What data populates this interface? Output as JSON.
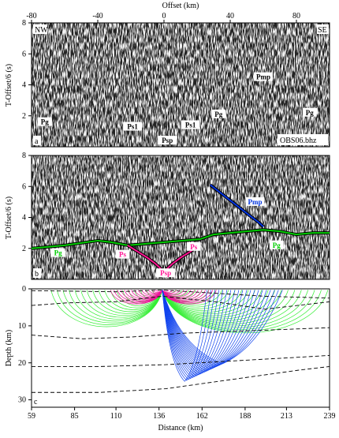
{
  "chart_data": [
    {
      "type": "seismic-section",
      "panel": "a",
      "title": "Offset (km)",
      "xlabel": "Offset (km)",
      "ylabel": "T-Offset/6 (s)",
      "xlim": [
        -80,
        100
      ],
      "ylim": [
        0,
        8
      ],
      "x_ticks": [
        "-80",
        "-40",
        "0",
        "40",
        "80"
      ],
      "y_ticks": [
        "2",
        "4",
        "6",
        "8"
      ],
      "corner_labels": {
        "left": "NW",
        "right": "SE"
      },
      "station": "OBS06.bhz",
      "phase_labels": [
        {
          "text": "Pg",
          "x": -72,
          "y": 1.5
        },
        {
          "text": "Ps1",
          "x": -19,
          "y": 1.2
        },
        {
          "text": "Psp",
          "x": 2,
          "y": 0.3
        },
        {
          "text": "Ps1",
          "x": 16,
          "y": 1.3
        },
        {
          "text": "Pg",
          "x": 33,
          "y": 2.0
        },
        {
          "text": "Pmp",
          "x": 60,
          "y": 4.4
        },
        {
          "text": "Pg",
          "x": 88,
          "y": 2.1
        }
      ]
    },
    {
      "type": "line",
      "panel": "b",
      "ylabel": "T-Offset/6 (s)",
      "xlim": [
        -80,
        100
      ],
      "ylim": [
        0,
        8
      ],
      "y_ticks": [
        "2",
        "4",
        "6",
        "8"
      ],
      "series": [
        {
          "name": "Pg",
          "color": "#00cc00",
          "x": [
            -80,
            -60,
            -40,
            -32,
            -22,
            22,
            30,
            40,
            50,
            60,
            70,
            80,
            90,
            100
          ],
          "y": [
            2.0,
            2.2,
            2.5,
            2.4,
            2.2,
            2.6,
            2.9,
            3.0,
            3.1,
            3.2,
            3.1,
            2.9,
            3.0,
            3.0
          ]
        },
        {
          "name": "Ps",
          "color": "#ff1493",
          "x": [
            -22,
            -16,
            -10,
            -5,
            -2,
            0,
            2,
            5,
            10,
            16,
            22
          ],
          "y": [
            2.2,
            1.8,
            1.4,
            1.0,
            0.7,
            0.4,
            0.7,
            1.0,
            1.4,
            1.8,
            2.3
          ]
        },
        {
          "name": "Pmp",
          "color": "#0033dd",
          "x": [
            28,
            34,
            40,
            46,
            52,
            57,
            60
          ],
          "y": [
            6.1,
            5.6,
            5.1,
            4.6,
            4.1,
            3.7,
            3.4
          ]
        }
      ],
      "phase_labels": [
        {
          "text": "Pg",
          "color": "#00cc00",
          "x": -64,
          "y": 1.6
        },
        {
          "text": "Ps",
          "color": "#ff1493",
          "x": -25,
          "y": 1.5
        },
        {
          "text": "Psp",
          "color": "#ff1493",
          "x": 1,
          "y": 0.3
        },
        {
          "text": "Ps",
          "color": "#ff1493",
          "x": 18,
          "y": 2.0
        },
        {
          "text": "Pmp",
          "color": "#0033dd",
          "x": 55,
          "y": 4.9
        },
        {
          "text": "Pg",
          "color": "#00cc00",
          "x": 68,
          "y": 2.1
        }
      ]
    },
    {
      "type": "ray-diagram",
      "panel": "c",
      "xlabel": "Distance (km)",
      "ylabel": "Depth (km)",
      "xlim": [
        59,
        239
      ],
      "ylim": [
        32,
        0
      ],
      "x_ticks": [
        "59",
        "85",
        "110",
        "136",
        "162",
        "188",
        "213",
        "239"
      ],
      "y_ticks": [
        "0",
        "10",
        "20",
        "30"
      ],
      "source_x": 138,
      "ray_colors": {
        "Pg": "#33ee33",
        "Ps": "#ee1099",
        "Pmp": "#1144ee"
      },
      "interfaces": [
        {
          "x": [
            59,
            80,
            110,
            138,
            170,
            200,
            239
          ],
          "y": [
            0.5,
            0.6,
            0.8,
            0.3,
            1.2,
            2.0,
            2.5
          ]
        },
        {
          "x": [
            59,
            80,
            110,
            138,
            170,
            200,
            239
          ],
          "y": [
            4.5,
            3.8,
            3.5,
            2.0,
            3.5,
            5.5,
            3.5
          ]
        },
        {
          "x": [
            59,
            90,
            120,
            150,
            180,
            210,
            239
          ],
          "y": [
            12.5,
            13.5,
            13.0,
            12.0,
            11.5,
            11.0,
            10.5
          ]
        },
        {
          "x": [
            59,
            100,
            140,
            180,
            220,
            239
          ],
          "y": [
            21.0,
            21.0,
            20.5,
            19.5,
            18.5,
            18.0
          ]
        },
        {
          "x": [
            59,
            100,
            140,
            180,
            220,
            239
          ],
          "y": [
            28.0,
            28.0,
            27.0,
            24.5,
            22.0,
            21.0
          ]
        }
      ]
    }
  ]
}
